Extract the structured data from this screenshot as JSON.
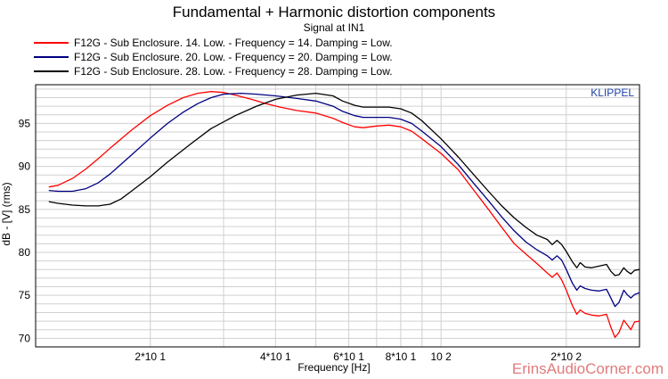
{
  "chart_data": {
    "type": "line",
    "title": "Fundamental + Harmonic distortion components",
    "subtitle": "Signal at IN1",
    "xlabel": "Frequency [Hz]",
    "ylabel": "dB - [V] (rms)",
    "xscale": "log",
    "xlim": [
      10.6,
      300
    ],
    "ylim": [
      69,
      99.5
    ],
    "grid": true,
    "legend_position": "top-left",
    "brand_label": "KLIPPEL",
    "x_ticks": [
      {
        "value": 20,
        "label": "2*10 1"
      },
      {
        "value": 40,
        "label": "4*10 1"
      },
      {
        "value": 60,
        "label": "6*10 1"
      },
      {
        "value": 80,
        "label": "8*10 1"
      },
      {
        "value": 100,
        "label": "10 2"
      },
      {
        "value": 200,
        "label": "2*10 2"
      }
    ],
    "y_ticks": [
      70,
      75,
      80,
      85,
      90,
      95
    ],
    "series": [
      {
        "name": "F12G - Sub Enclosure. 14. Low. - Frequency = 14.  Damping = Low.",
        "color": "#ff0000",
        "points": [
          [
            11.4,
            87.6
          ],
          [
            12,
            87.8
          ],
          [
            13,
            88.6
          ],
          [
            14,
            89.7
          ],
          [
            15,
            90.9
          ],
          [
            16,
            92.1
          ],
          [
            18,
            94.2
          ],
          [
            20,
            95.9
          ],
          [
            22,
            97.1
          ],
          [
            24,
            98
          ],
          [
            26,
            98.5
          ],
          [
            28,
            98.7
          ],
          [
            30,
            98.6
          ],
          [
            32,
            98.3
          ],
          [
            35,
            97.8
          ],
          [
            38,
            97.3
          ],
          [
            41,
            96.9
          ],
          [
            45,
            96.5
          ],
          [
            50,
            96.2
          ],
          [
            55,
            95.6
          ],
          [
            58,
            95.1
          ],
          [
            62,
            94.6
          ],
          [
            65,
            94.5
          ],
          [
            70,
            94.7
          ],
          [
            75,
            94.8
          ],
          [
            80,
            94.6
          ],
          [
            85,
            94.1
          ],
          [
            90,
            93.2
          ],
          [
            100,
            91.5
          ],
          [
            110,
            89.6
          ],
          [
            120,
            87.2
          ],
          [
            130,
            85
          ],
          [
            140,
            82.9
          ],
          [
            150,
            81
          ],
          [
            160,
            79.8
          ],
          [
            170,
            78.7
          ],
          [
            180,
            77.6
          ],
          [
            185,
            77.1
          ],
          [
            190,
            77.6
          ],
          [
            195,
            76.8
          ],
          [
            200,
            75.6
          ],
          [
            207,
            73.8
          ],
          [
            212,
            72.8
          ],
          [
            216,
            73.3
          ],
          [
            222,
            72.9
          ],
          [
            230,
            72.7
          ],
          [
            240,
            72.6
          ],
          [
            250,
            72.8
          ],
          [
            256,
            71.3
          ],
          [
            262,
            70.1
          ],
          [
            268,
            70.7
          ],
          [
            275,
            72.1
          ],
          [
            280,
            71.6
          ],
          [
            286,
            71
          ],
          [
            292,
            71.9
          ],
          [
            300,
            72
          ]
        ]
      },
      {
        "name": "F12G - Sub Enclosure. 20. Low. - Frequency = 20.  Damping = Low.",
        "color": "#000080",
        "points": [
          [
            11.4,
            87.2
          ],
          [
            12,
            87.1
          ],
          [
            13,
            87.1
          ],
          [
            14,
            87.4
          ],
          [
            15,
            88.1
          ],
          [
            16,
            89.1
          ],
          [
            18,
            91.3
          ],
          [
            20,
            93.3
          ],
          [
            22,
            95
          ],
          [
            24,
            96.3
          ],
          [
            26,
            97.3
          ],
          [
            28,
            98
          ],
          [
            30,
            98.4
          ],
          [
            33,
            98.5
          ],
          [
            36,
            98.4
          ],
          [
            40,
            98.2
          ],
          [
            45,
            97.9
          ],
          [
            50,
            97.6
          ],
          [
            55,
            97
          ],
          [
            58,
            96.4
          ],
          [
            62,
            95.9
          ],
          [
            65,
            95.7
          ],
          [
            70,
            95.7
          ],
          [
            75,
            95.7
          ],
          [
            80,
            95.5
          ],
          [
            85,
            95
          ],
          [
            90,
            94.1
          ],
          [
            100,
            92.3
          ],
          [
            110,
            90.2
          ],
          [
            120,
            88
          ],
          [
            130,
            86
          ],
          [
            140,
            84.1
          ],
          [
            150,
            82.5
          ],
          [
            160,
            81.2
          ],
          [
            170,
            80.3
          ],
          [
            180,
            79.6
          ],
          [
            185,
            79.1
          ],
          [
            190,
            79.6
          ],
          [
            195,
            79.1
          ],
          [
            200,
            78
          ],
          [
            207,
            76.4
          ],
          [
            212,
            75.6
          ],
          [
            216,
            76.1
          ],
          [
            222,
            75.8
          ],
          [
            230,
            75.6
          ],
          [
            240,
            75.5
          ],
          [
            250,
            75.7
          ],
          [
            256,
            74.7
          ],
          [
            262,
            73.7
          ],
          [
            268,
            74.2
          ],
          [
            275,
            75.6
          ],
          [
            280,
            75.1
          ],
          [
            286,
            74.7
          ],
          [
            292,
            75.1
          ],
          [
            300,
            75.3
          ]
        ]
      },
      {
        "name": "F12G - Sub Enclosure. 28. Low. - Frequency = 28.  Damping = Low.",
        "color": "#000000",
        "points": [
          [
            11.4,
            85.9
          ],
          [
            12,
            85.7
          ],
          [
            13,
            85.5
          ],
          [
            14,
            85.4
          ],
          [
            15,
            85.4
          ],
          [
            16,
            85.6
          ],
          [
            17,
            86.2
          ],
          [
            18,
            87.1
          ],
          [
            20,
            88.8
          ],
          [
            22,
            90.5
          ],
          [
            25,
            92.6
          ],
          [
            28,
            94.4
          ],
          [
            32,
            95.9
          ],
          [
            36,
            97
          ],
          [
            40,
            97.8
          ],
          [
            45,
            98.3
          ],
          [
            50,
            98.5
          ],
          [
            55,
            98.2
          ],
          [
            58,
            97.6
          ],
          [
            62,
            97.1
          ],
          [
            65,
            96.9
          ],
          [
            70,
            96.9
          ],
          [
            75,
            96.9
          ],
          [
            80,
            96.7
          ],
          [
            85,
            96.2
          ],
          [
            90,
            95.3
          ],
          [
            100,
            93.2
          ],
          [
            110,
            91.1
          ],
          [
            120,
            89
          ],
          [
            130,
            87.1
          ],
          [
            140,
            85.4
          ],
          [
            150,
            84
          ],
          [
            160,
            82.9
          ],
          [
            170,
            82
          ],
          [
            180,
            81.5
          ],
          [
            185,
            80.9
          ],
          [
            190,
            81.4
          ],
          [
            195,
            80.9
          ],
          [
            200,
            80.1
          ],
          [
            207,
            78.9
          ],
          [
            212,
            78.2
          ],
          [
            216,
            78.8
          ],
          [
            222,
            78.3
          ],
          [
            230,
            78.2
          ],
          [
            240,
            78.4
          ],
          [
            250,
            78.6
          ],
          [
            256,
            77.8
          ],
          [
            262,
            77.3
          ],
          [
            268,
            77.4
          ],
          [
            275,
            78.2
          ],
          [
            280,
            77.8
          ],
          [
            286,
            77.5
          ],
          [
            292,
            77.9
          ],
          [
            300,
            78
          ]
        ]
      }
    ]
  },
  "watermark": "ErinsAudioCorner.com"
}
